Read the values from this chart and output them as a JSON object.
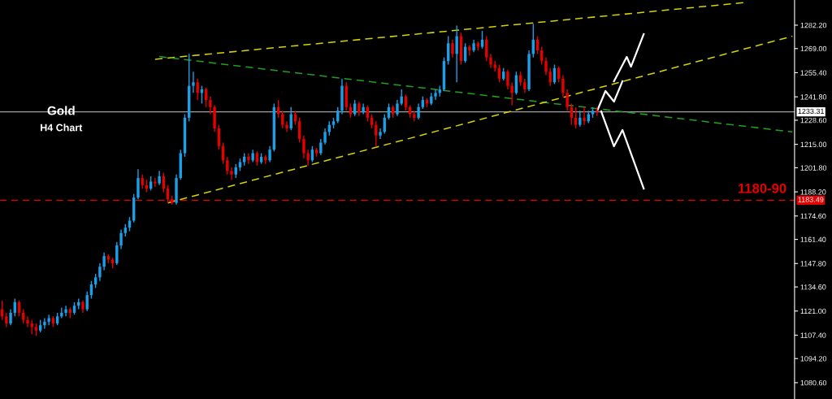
{
  "chart_data": {
    "type": "candlestick",
    "categories": [
      null,
      null,
      null,
      null,
      null,
      null,
      null,
      null,
      null,
      null,
      null,
      null,
      null,
      null,
      null,
      null,
      null,
      null,
      null,
      null,
      null,
      null,
      null,
      null,
      null,
      null,
      null,
      null,
      null,
      null,
      null,
      null,
      null,
      null,
      null,
      null,
      null,
      null,
      null,
      null,
      null,
      null,
      null,
      null,
      null,
      null,
      null,
      null,
      null,
      null,
      null,
      null,
      null,
      null,
      null,
      null,
      null,
      null,
      null,
      null,
      null,
      null,
      null,
      null,
      null,
      null,
      null,
      null,
      null,
      null,
      null,
      null,
      null,
      null,
      null,
      null,
      null,
      null,
      null,
      null,
      null,
      null,
      null,
      null,
      null,
      null,
      null,
      null,
      null,
      null,
      null,
      null,
      null,
      null,
      null,
      null,
      null,
      null,
      null,
      null,
      null,
      null,
      null,
      null,
      null,
      null,
      null,
      null,
      null,
      null,
      null,
      null,
      null,
      null,
      null,
      null,
      null,
      null,
      null,
      null,
      null,
      null,
      null,
      null,
      null,
      null,
      null,
      null,
      null,
      null,
      null,
      null,
      null,
      null,
      null,
      null,
      null,
      null,
      null,
      null,
      null,
      null,
      null,
      null,
      null,
      null,
      null,
      null,
      null,
      null,
      null,
      null,
      null,
      null,
      null,
      null,
      null,
      null,
      null,
      null,
      null,
      null,
      null,
      null,
      null,
      null,
      null,
      null,
      null,
      null,
      null,
      null,
      null,
      null,
      null,
      null,
      null,
      null,
      null,
      null,
      null,
      null,
      null,
      null,
      null,
      null,
      null
    ],
    "ohlc": [
      [
        1122,
        1127,
        1116,
        1118
      ],
      [
        1118,
        1120,
        1112,
        1114
      ],
      [
        1114,
        1122,
        1113,
        1120
      ],
      [
        1120,
        1128,
        1118,
        1126
      ],
      [
        1126,
        1127,
        1118,
        1120
      ],
      [
        1120,
        1122,
        1114,
        1116
      ],
      [
        1116,
        1118,
        1112,
        1114
      ],
      [
        1114,
        1116,
        1108,
        1112
      ],
      [
        1112,
        1114,
        1107,
        1110
      ],
      [
        1110,
        1116,
        1109,
        1113
      ],
      [
        1113,
        1117,
        1111,
        1115
      ],
      [
        1115,
        1119,
        1113,
        1117
      ],
      [
        1117,
        1118,
        1112,
        1114
      ],
      [
        1114,
        1120,
        1113,
        1118
      ],
      [
        1118,
        1123,
        1117,
        1120
      ],
      [
        1120,
        1124,
        1118,
        1122
      ],
      [
        1122,
        1123,
        1117,
        1120
      ],
      [
        1120,
        1126,
        1119,
        1124
      ],
      [
        1124,
        1128,
        1122,
        1126
      ],
      [
        1126,
        1127,
        1120,
        1122
      ],
      [
        1122,
        1132,
        1121,
        1130
      ],
      [
        1130,
        1138,
        1128,
        1136
      ],
      [
        1136,
        1142,
        1134,
        1140
      ],
      [
        1140,
        1148,
        1138,
        1146
      ],
      [
        1146,
        1154,
        1144,
        1152
      ],
      [
        1152,
        1153,
        1148,
        1150
      ],
      [
        1150,
        1151,
        1145,
        1148
      ],
      [
        1148,
        1160,
        1147,
        1158
      ],
      [
        1158,
        1167,
        1156,
        1165
      ],
      [
        1165,
        1170,
        1163,
        1168
      ],
      [
        1168,
        1174,
        1166,
        1172
      ],
      [
        1172,
        1187,
        1171,
        1185
      ],
      [
        1185,
        1201,
        1184,
        1196
      ],
      [
        1196,
        1198,
        1190,
        1192
      ],
      [
        1192,
        1195,
        1188,
        1190
      ],
      [
        1190,
        1197,
        1189,
        1194
      ],
      [
        1194,
        1196,
        1191,
        1193
      ],
      [
        1193,
        1200,
        1192,
        1197
      ],
      [
        1197,
        1199,
        1188,
        1190
      ],
      [
        1190,
        1192,
        1182,
        1184
      ],
      [
        1184,
        1186,
        1181,
        1182
      ],
      [
        1182,
        1198,
        1181,
        1196
      ],
      [
        1196,
        1212,
        1195,
        1210
      ],
      [
        1210,
        1232,
        1208,
        1230
      ],
      [
        1230,
        1266,
        1228,
        1248
      ],
      [
        1248,
        1256,
        1244,
        1250
      ],
      [
        1250,
        1252,
        1240,
        1244
      ],
      [
        1244,
        1248,
        1238,
        1246
      ],
      [
        1246,
        1247,
        1236,
        1240
      ],
      [
        1240,
        1242,
        1232,
        1236
      ],
      [
        1236,
        1237,
        1222,
        1224
      ],
      [
        1224,
        1226,
        1212,
        1214
      ],
      [
        1214,
        1216,
        1204,
        1206
      ],
      [
        1206,
        1208,
        1198,
        1200
      ],
      [
        1200,
        1202,
        1195,
        1198
      ],
      [
        1198,
        1204,
        1196,
        1202
      ],
      [
        1202,
        1207,
        1200,
        1205
      ],
      [
        1205,
        1210,
        1203,
        1208
      ],
      [
        1208,
        1210,
        1204,
        1206
      ],
      [
        1206,
        1212,
        1205,
        1210
      ],
      [
        1210,
        1211,
        1203,
        1205
      ],
      [
        1205,
        1210,
        1204,
        1208
      ],
      [
        1208,
        1209,
        1204,
        1206
      ],
      [
        1206,
        1214,
        1205,
        1212
      ],
      [
        1212,
        1238,
        1211,
        1236
      ],
      [
        1236,
        1240,
        1230,
        1232
      ],
      [
        1232,
        1234,
        1224,
        1226
      ],
      [
        1226,
        1228,
        1222,
        1224
      ],
      [
        1224,
        1236,
        1223,
        1232
      ],
      [
        1232,
        1234,
        1226,
        1228
      ],
      [
        1228,
        1230,
        1216,
        1218
      ],
      [
        1218,
        1220,
        1207,
        1210
      ],
      [
        1210,
        1212,
        1203,
        1206
      ],
      [
        1206,
        1214,
        1205,
        1212
      ],
      [
        1212,
        1213,
        1208,
        1210
      ],
      [
        1210,
        1218,
        1209,
        1216
      ],
      [
        1216,
        1224,
        1215,
        1222
      ],
      [
        1222,
        1228,
        1220,
        1226
      ],
      [
        1226,
        1230,
        1224,
        1228
      ],
      [
        1228,
        1236,
        1227,
        1234
      ],
      [
        1234,
        1252,
        1232,
        1248
      ],
      [
        1248,
        1250,
        1234,
        1236
      ],
      [
        1236,
        1238,
        1230,
        1232
      ],
      [
        1232,
        1240,
        1231,
        1238
      ],
      [
        1238,
        1239,
        1231,
        1233
      ],
      [
        1233,
        1238,
        1232,
        1236
      ],
      [
        1236,
        1237,
        1228,
        1230
      ],
      [
        1230,
        1232,
        1224,
        1226
      ],
      [
        1226,
        1228,
        1214,
        1220
      ],
      [
        1220,
        1224,
        1218,
        1222
      ],
      [
        1222,
        1232,
        1221,
        1230
      ],
      [
        1230,
        1238,
        1229,
        1236
      ],
      [
        1236,
        1237,
        1230,
        1232
      ],
      [
        1232,
        1240,
        1231,
        1238
      ],
      [
        1238,
        1246,
        1237,
        1242
      ],
      [
        1242,
        1243,
        1234,
        1236
      ],
      [
        1236,
        1237,
        1230,
        1232
      ],
      [
        1232,
        1234,
        1228,
        1230
      ],
      [
        1230,
        1238,
        1229,
        1236
      ],
      [
        1236,
        1242,
        1235,
        1240
      ],
      [
        1240,
        1241,
        1236,
        1238
      ],
      [
        1238,
        1244,
        1237,
        1242
      ],
      [
        1242,
        1246,
        1240,
        1244
      ],
      [
        1244,
        1248,
        1242,
        1246
      ],
      [
        1246,
        1264,
        1245,
        1262
      ],
      [
        1262,
        1276,
        1260,
        1272
      ],
      [
        1272,
        1274,
        1264,
        1266
      ],
      [
        1266,
        1282,
        1250,
        1276
      ],
      [
        1276,
        1278,
        1260,
        1262
      ],
      [
        1262,
        1272,
        1261,
        1270
      ],
      [
        1270,
        1271,
        1265,
        1268
      ],
      [
        1268,
        1274,
        1267,
        1272
      ],
      [
        1272,
        1273,
        1268,
        1270
      ],
      [
        1270,
        1279,
        1269,
        1274
      ],
      [
        1274,
        1276,
        1262,
        1264
      ],
      [
        1264,
        1266,
        1258,
        1260
      ],
      [
        1260,
        1262,
        1256,
        1258
      ],
      [
        1258,
        1260,
        1250,
        1252
      ],
      [
        1252,
        1258,
        1251,
        1256
      ],
      [
        1256,
        1257,
        1246,
        1248
      ],
      [
        1248,
        1250,
        1237,
        1244
      ],
      [
        1244,
        1256,
        1243,
        1254
      ],
      [
        1254,
        1256,
        1248,
        1250
      ],
      [
        1250,
        1252,
        1244,
        1246
      ],
      [
        1246,
        1268,
        1245,
        1266
      ],
      [
        1266,
        1283,
        1264,
        1274
      ],
      [
        1274,
        1276,
        1266,
        1268
      ],
      [
        1268,
        1270,
        1260,
        1262
      ],
      [
        1262,
        1264,
        1254,
        1256
      ],
      [
        1256,
        1258,
        1248,
        1250
      ],
      [
        1250,
        1260,
        1249,
        1258
      ],
      [
        1258,
        1259,
        1250,
        1252
      ],
      [
        1252,
        1254,
        1242,
        1244
      ],
      [
        1244,
        1246,
        1234,
        1236
      ],
      [
        1236,
        1238,
        1226,
        1230
      ],
      [
        1230,
        1236,
        1224,
        1226
      ],
      [
        1226,
        1234,
        1225,
        1230
      ],
      [
        1230,
        1236,
        1226,
        1228
      ],
      [
        1228,
        1234,
        1227,
        1232
      ],
      [
        1232,
        1236,
        1230,
        1234
      ],
      [
        1234,
        1236,
        1231,
        1233.31
      ],
      null,
      null,
      null,
      null,
      null,
      null,
      null,
      null,
      null,
      null,
      null,
      null,
      null,
      null,
      null,
      null,
      null,
      null,
      null,
      null,
      null,
      null,
      null,
      null,
      null,
      null,
      null,
      null,
      null,
      null,
      null,
      null,
      null,
      null,
      null,
      null,
      null,
      null,
      null,
      null,
      null,
      null,
      null,
      null,
      null,
      null
    ],
    "colors": [
      "#e60000",
      "#e60000",
      "#1aa0e8",
      "#1aa0e8",
      "#e60000",
      "#e60000",
      "#e60000",
      "#e60000",
      "#e60000",
      "#1aa0e8",
      "#1aa0e8",
      "#1aa0e8",
      "#e60000",
      "#1aa0e8",
      "#1aa0e8",
      "#1aa0e8",
      "#e60000",
      "#1aa0e8",
      "#1aa0e8",
      "#e60000",
      "#1aa0e8",
      "#1aa0e8",
      "#1aa0e8",
      "#1aa0e8",
      "#1aa0e8",
      "#e60000",
      "#e60000",
      "#1aa0e8",
      "#1aa0e8",
      "#1aa0e8",
      "#1aa0e8",
      "#1aa0e8",
      "#1aa0e8",
      "#e60000",
      "#e60000",
      "#1aa0e8",
      "#e60000",
      "#1aa0e8",
      "#e60000",
      "#e60000",
      "#e60000",
      "#1aa0e8",
      "#1aa0e8",
      "#1aa0e8",
      "#1aa0e8",
      "#1aa0e8",
      "#e60000",
      "#1aa0e8",
      "#e60000",
      "#e60000",
      "#e60000",
      "#e60000",
      "#e60000",
      "#e60000",
      "#e60000",
      "#1aa0e8",
      "#1aa0e8",
      "#1aa0e8",
      "#e60000",
      "#1aa0e8",
      "#e60000",
      "#1aa0e8",
      "#e60000",
      "#1aa0e8",
      "#1aa0e8",
      "#e60000",
      "#e60000",
      "#e60000",
      "#1aa0e8",
      "#e60000",
      "#e60000",
      "#e60000",
      "#e60000",
      "#1aa0e8",
      "#e60000",
      "#1aa0e8",
      "#1aa0e8",
      "#1aa0e8",
      "#1aa0e8",
      "#1aa0e8",
      "#1aa0e8",
      "#e60000",
      "#e60000",
      "#1aa0e8",
      "#e60000",
      "#1aa0e8",
      "#e60000",
      "#e60000",
      "#e60000",
      "#1aa0e8",
      "#1aa0e8",
      "#1aa0e8",
      "#e60000",
      "#1aa0e8",
      "#1aa0e8",
      "#e60000",
      "#e60000",
      "#e60000",
      "#1aa0e8",
      "#1aa0e8",
      "#e60000",
      "#1aa0e8",
      "#1aa0e8",
      "#1aa0e8",
      "#1aa0e8",
      "#1aa0e8",
      "#e60000",
      "#1aa0e8",
      "#e60000",
      "#1aa0e8",
      "#e60000",
      "#1aa0e8",
      "#e60000",
      "#1aa0e8",
      "#e60000",
      "#e60000",
      "#e60000",
      "#e60000",
      "#1aa0e8",
      "#e60000",
      "#e60000",
      "#1aa0e8",
      "#e60000",
      "#e60000",
      "#1aa0e8",
      "#1aa0e8",
      "#e60000",
      "#e60000",
      "#e60000",
      "#e60000",
      "#1aa0e8",
      "#e60000",
      "#e60000",
      "#e60000",
      "#e60000",
      "#e60000",
      "#1aa0e8",
      "#e60000",
      "#1aa0e8",
      "#1aa0e8",
      "#e60000",
      null,
      null,
      null,
      null,
      null,
      null,
      null,
      null,
      null,
      null,
      null,
      null,
      null,
      null,
      null,
      null,
      null,
      null,
      null,
      null,
      null,
      null,
      null,
      null,
      null,
      null,
      null,
      null,
      null,
      null,
      null,
      null,
      null,
      null,
      null,
      null,
      null,
      null,
      null,
      null,
      null,
      null,
      null,
      null,
      null,
      null
    ],
    "series": [
      {
        "type": "line",
        "color": "#d4d400",
        "line_style": "dashed",
        "values": [
          null,
          null,
          null,
          null,
          null,
          null,
          null,
          null,
          null,
          null,
          null,
          null,
          null,
          null,
          null,
          null,
          null,
          null,
          null,
          null,
          null,
          null,
          null,
          null,
          null,
          null,
          null,
          null,
          null,
          null,
          null,
          null,
          null,
          null,
          null,
          null,
          1263,
          null,
          null,
          null,
          null,
          null,
          null,
          null,
          null,
          null,
          null,
          null,
          null,
          null,
          null,
          null,
          null,
          null,
          null,
          null,
          null,
          null,
          null,
          null,
          null,
          null,
          null,
          null,
          null,
          null,
          null,
          null,
          null,
          null,
          null,
          null,
          null,
          null,
          null,
          null,
          null,
          null,
          null,
          null,
          null,
          null,
          null,
          null,
          null,
          null,
          null,
          null,
          null,
          null,
          null,
          null,
          null,
          null,
          null,
          null,
          null,
          null,
          null,
          null,
          null,
          null,
          null,
          null,
          null,
          null,
          null,
          null,
          null,
          null,
          null,
          null,
          null,
          null,
          null,
          null,
          null,
          null,
          null,
          null,
          null,
          null,
          null,
          null,
          null,
          null,
          null,
          null,
          null,
          null,
          null,
          null,
          null,
          null,
          null,
          null,
          null,
          null,
          null,
          null,
          null,
          null,
          null,
          null,
          null,
          null,
          null,
          null,
          null,
          null,
          null,
          null,
          null,
          null,
          null,
          null,
          null,
          null,
          null,
          null,
          null,
          null,
          null,
          null,
          null,
          null,
          null,
          null,
          null,
          null,
          null,
          null,
          null,
          null,
          null,
          1295,
          null,
          null,
          null,
          null,
          null,
          null,
          null,
          null,
          null,
          null,
          null
        ]
      },
      {
        "type": "line",
        "color": "#1fa01f",
        "line_style": "dashed",
        "values": [
          null,
          null,
          null,
          null,
          null,
          null,
          null,
          null,
          null,
          null,
          null,
          null,
          null,
          null,
          null,
          null,
          null,
          null,
          null,
          null,
          null,
          null,
          null,
          null,
          null,
          null,
          null,
          null,
          null,
          null,
          null,
          null,
          null,
          null,
          null,
          null,
          null,
          1264.5,
          null,
          null,
          null,
          null,
          null,
          null,
          null,
          null,
          null,
          null,
          null,
          null,
          null,
          null,
          null,
          null,
          null,
          null,
          null,
          null,
          null,
          null,
          null,
          null,
          null,
          null,
          null,
          null,
          null,
          null,
          null,
          null,
          null,
          null,
          null,
          null,
          null,
          null,
          null,
          null,
          null,
          null,
          null,
          null,
          null,
          null,
          null,
          null,
          null,
          null,
          null,
          null,
          null,
          null,
          null,
          null,
          null,
          null,
          null,
          null,
          null,
          null,
          null,
          null,
          null,
          null,
          null,
          null,
          null,
          null,
          null,
          null,
          null,
          null,
          null,
          null,
          null,
          null,
          null,
          null,
          null,
          null,
          null,
          null,
          null,
          null,
          null,
          null,
          null,
          null,
          null,
          null,
          null,
          null,
          null,
          null,
          null,
          null,
          null,
          null,
          null,
          null,
          null,
          null,
          null,
          null,
          null,
          null,
          null,
          null,
          null,
          null,
          null,
          null,
          null,
          null,
          null,
          null,
          null,
          null,
          null,
          null,
          null,
          null,
          null,
          null,
          null,
          null,
          null,
          null,
          null,
          null,
          null,
          null,
          null,
          null,
          null,
          null,
          null,
          null,
          null,
          null,
          null,
          null,
          null,
          null,
          null,
          null,
          1222
        ]
      },
      {
        "type": "line",
        "color": "#d4d400",
        "line_style": "dashed",
        "values": [
          null,
          null,
          null,
          null,
          null,
          null,
          null,
          null,
          null,
          null,
          null,
          null,
          null,
          null,
          null,
          null,
          null,
          null,
          null,
          null,
          null,
          null,
          null,
          null,
          null,
          null,
          null,
          null,
          null,
          null,
          null,
          null,
          null,
          null,
          null,
          null,
          null,
          null,
          null,
          1182,
          null,
          null,
          null,
          null,
          null,
          null,
          null,
          null,
          null,
          null,
          null,
          null,
          null,
          null,
          null,
          null,
          null,
          null,
          null,
          null,
          null,
          null,
          null,
          null,
          null,
          null,
          null,
          null,
          null,
          null,
          null,
          null,
          null,
          null,
          null,
          null,
          null,
          null,
          null,
          null,
          null,
          null,
          null,
          null,
          null,
          null,
          null,
          null,
          null,
          null,
          null,
          null,
          null,
          null,
          null,
          null,
          null,
          null,
          null,
          null,
          null,
          null,
          null,
          null,
          null,
          null,
          null,
          null,
          null,
          null,
          null,
          null,
          null,
          null,
          null,
          null,
          null,
          null,
          null,
          null,
          null,
          null,
          null,
          null,
          null,
          null,
          null,
          null,
          null,
          null,
          null,
          null,
          null,
          null,
          null,
          null,
          null,
          null,
          null,
          null,
          null,
          null,
          null,
          null,
          null,
          null,
          null,
          null,
          null,
          null,
          null,
          null,
          null,
          null,
          null,
          null,
          null,
          null,
          null,
          null,
          null,
          null,
          null,
          null,
          null,
          null,
          null,
          null,
          null,
          null,
          null,
          null,
          null,
          null,
          null,
          null,
          null,
          null,
          null,
          null,
          null,
          null,
          null,
          null,
          null,
          null,
          1276
        ]
      },
      {
        "type": "line",
        "color": "#ffffff",
        "line_style": "solid",
        "values": [
          null,
          null,
          null,
          null,
          null,
          null,
          null,
          null,
          null,
          null,
          null,
          null,
          null,
          null,
          null,
          null,
          null,
          null,
          null,
          null,
          null,
          null,
          null,
          null,
          null,
          null,
          null,
          null,
          null,
          null,
          null,
          null,
          null,
          null,
          null,
          null,
          null,
          null,
          null,
          null,
          null,
          null,
          null,
          null,
          null,
          null,
          null,
          null,
          null,
          null,
          null,
          null,
          null,
          null,
          null,
          null,
          null,
          null,
          null,
          null,
          null,
          null,
          null,
          null,
          null,
          null,
          null,
          null,
          null,
          null,
          null,
          null,
          null,
          null,
          null,
          null,
          null,
          null,
          null,
          null,
          null,
          null,
          null,
          null,
          null,
          null,
          null,
          null,
          null,
          null,
          null,
          null,
          null,
          null,
          null,
          null,
          null,
          null,
          null,
          null,
          null,
          null,
          null,
          null,
          null,
          null,
          null,
          null,
          null,
          null,
          null,
          null,
          null,
          null,
          null,
          null,
          null,
          null,
          null,
          null,
          null,
          null,
          null,
          null,
          null,
          null,
          null,
          null,
          null,
          null,
          null,
          null,
          null,
          null,
          null,
          null,
          null,
          null,
          null,
          null,
          1233.6,
          null,
          1245.1,
          null,
          1239.1,
          null,
          1250.6,
          null,
          null,
          null,
          null,
          null,
          null,
          null,
          null,
          null,
          null,
          null,
          null,
          null,
          null,
          null,
          null,
          null,
          null,
          null,
          null,
          null,
          null,
          null,
          null,
          null,
          null,
          null,
          null,
          null,
          null,
          null,
          null,
          null,
          null,
          null,
          null,
          null,
          null,
          null,
          null
        ]
      },
      {
        "type": "line",
        "color": "#ffffff",
        "line_style": "solid",
        "values": [
          null,
          null,
          null,
          null,
          null,
          null,
          null,
          null,
          null,
          null,
          null,
          null,
          null,
          null,
          null,
          null,
          null,
          null,
          null,
          null,
          null,
          null,
          null,
          null,
          null,
          null,
          null,
          null,
          null,
          null,
          null,
          null,
          null,
          null,
          null,
          null,
          null,
          null,
          null,
          null,
          null,
          null,
          null,
          null,
          null,
          null,
          null,
          null,
          null,
          null,
          null,
          null,
          null,
          null,
          null,
          null,
          null,
          null,
          null,
          null,
          null,
          null,
          null,
          null,
          null,
          null,
          null,
          null,
          null,
          null,
          null,
          null,
          null,
          null,
          null,
          null,
          null,
          null,
          null,
          null,
          null,
          null,
          null,
          null,
          null,
          null,
          null,
          null,
          null,
          null,
          null,
          null,
          null,
          null,
          null,
          null,
          null,
          null,
          null,
          null,
          null,
          null,
          null,
          null,
          null,
          null,
          null,
          null,
          null,
          null,
          null,
          null,
          null,
          null,
          null,
          null,
          null,
          null,
          null,
          null,
          null,
          null,
          null,
          null,
          null,
          null,
          null,
          null,
          null,
          null,
          null,
          null,
          null,
          null,
          null,
          null,
          null,
          null,
          null,
          null,
          null,
          null,
          null,
          null,
          1250.6,
          null,
          null,
          1264.3,
          1258.8,
          null,
          null,
          1277.2,
          null,
          null,
          null,
          null,
          null,
          null,
          null,
          null,
          null,
          null,
          null,
          null,
          null,
          null,
          null,
          null,
          null,
          null,
          null,
          null,
          null,
          null,
          null,
          null,
          null,
          null,
          null,
          null,
          null,
          null,
          null,
          null,
          null,
          null,
          null
        ]
      },
      {
        "type": "line",
        "color": "#ffffff",
        "line_style": "solid",
        "values": [
          null,
          null,
          null,
          null,
          null,
          null,
          null,
          null,
          null,
          null,
          null,
          null,
          null,
          null,
          null,
          null,
          null,
          null,
          null,
          null,
          null,
          null,
          null,
          null,
          null,
          null,
          null,
          null,
          null,
          null,
          null,
          null,
          null,
          null,
          null,
          null,
          null,
          null,
          null,
          null,
          null,
          null,
          null,
          null,
          null,
          null,
          null,
          null,
          null,
          null,
          null,
          null,
          null,
          null,
          null,
          null,
          null,
          null,
          null,
          null,
          null,
          null,
          null,
          null,
          null,
          null,
          null,
          null,
          null,
          null,
          null,
          null,
          null,
          null,
          null,
          null,
          null,
          null,
          null,
          null,
          null,
          null,
          null,
          null,
          null,
          null,
          null,
          null,
          null,
          null,
          null,
          null,
          null,
          null,
          null,
          null,
          null,
          null,
          null,
          null,
          null,
          null,
          null,
          null,
          null,
          null,
          null,
          null,
          null,
          null,
          null,
          null,
          null,
          null,
          null,
          null,
          null,
          null,
          null,
          null,
          null,
          null,
          null,
          null,
          null,
          null,
          null,
          null,
          null,
          null,
          null,
          null,
          null,
          null,
          null,
          null,
          null,
          null,
          null,
          null,
          null,
          1233.6,
          null,
          null,
          1213.9,
          null,
          1223.1,
          null,
          null,
          null,
          null,
          1190.1,
          null,
          null,
          null,
          null,
          null,
          null,
          null,
          null,
          null,
          null,
          null,
          null,
          null,
          null,
          null,
          null,
          null,
          null,
          null,
          null,
          null,
          null,
          null,
          null,
          null,
          null,
          null,
          null,
          null,
          null,
          null,
          null,
          null,
          null,
          null
        ]
      }
    ],
    "ref_lines": [
      {
        "axis": "y",
        "value": 1233.31,
        "label": "1233.31",
        "color": "#a0a0a0",
        "line_style": "solid"
      },
      {
        "axis": "y",
        "value": 1183.49,
        "label": "1183.49",
        "color": "#e60000",
        "line_style": "dashed"
      }
    ],
    "annotations": [
      "Gold",
      "H4 Chart",
      "1180-90"
    ],
    "ylim": [
      1071.4,
      1296.4
    ],
    "yticks": [
      {
        "value": 1080.6,
        "label": "1080.60"
      },
      {
        "value": 1094.2,
        "label": "1094.20"
      },
      {
        "value": 1107.4,
        "label": "1107.40"
      },
      {
        "value": 1121.0,
        "label": "1121.00"
      },
      {
        "value": 1134.6,
        "label": "1134.60"
      },
      {
        "value": 1147.8,
        "label": "1147.80"
      },
      {
        "value": 1161.4,
        "label": "1161.40"
      },
      {
        "value": 1174.6,
        "label": "1174.60"
      },
      {
        "value": 1188.2,
        "label": "1188.20"
      },
      {
        "value": 1201.8,
        "label": "1201.80"
      },
      {
        "value": 1215.0,
        "label": "1215.00"
      },
      {
        "value": 1228.6,
        "label": "1228.60"
      },
      {
        "value": 1241.8,
        "label": "1241.80"
      },
      {
        "value": 1255.4,
        "label": "1255.40"
      },
      {
        "value": 1269.0,
        "label": "1269.00"
      },
      {
        "value": 1282.2,
        "label": "1282.20"
      }
    ],
    "grid": false,
    "legend": false,
    "tick_labels": "y"
  }
}
